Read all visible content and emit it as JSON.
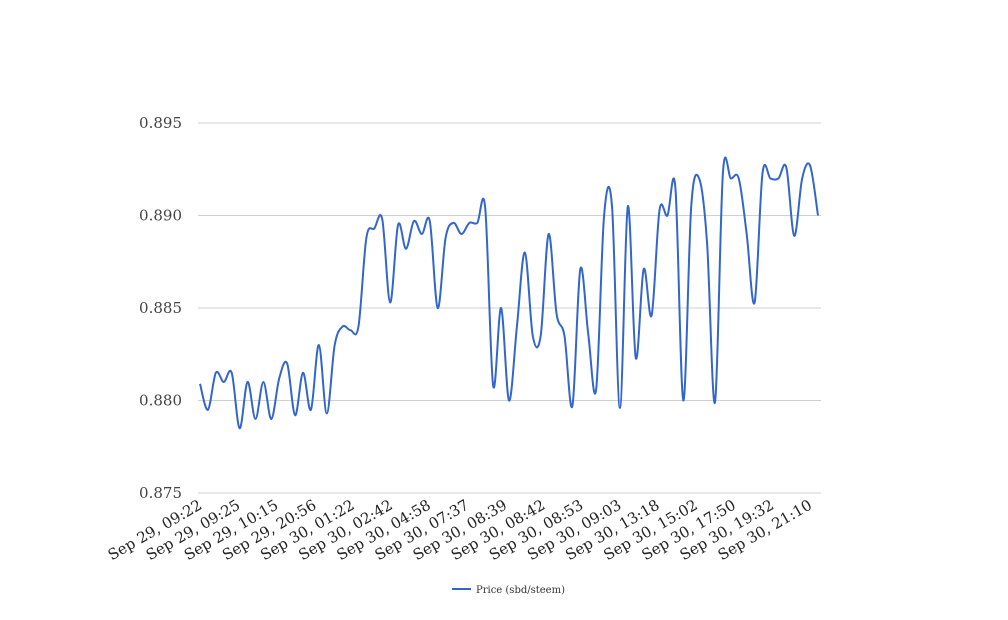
{
  "chart_data": {
    "type": "line",
    "title": "",
    "xlabel": "",
    "ylabel": "",
    "ylim": [
      0.875,
      0.895
    ],
    "y_ticks": [
      "0.875",
      "0.880",
      "0.885",
      "0.890",
      "0.895"
    ],
    "y_tick_values": [
      0.875,
      0.88,
      0.885,
      0.89,
      0.895
    ],
    "x_tick_labels": [
      "Sep 29, 09:22",
      "Sep 29, 09:25",
      "Sep 29, 10:15",
      "Sep 29, 20:56",
      "Sep 30, 01:22",
      "Sep 30, 02:42",
      "Sep 30, 04:58",
      "Sep 30, 07:37",
      "Sep 30, 08:39",
      "Sep 30, 08:42",
      "Sep 30, 08:53",
      "Sep 30, 09:03",
      "Sep 30, 13:18",
      "Sep 30, 15:02",
      "Sep 30, 17:50",
      "Sep 30, 19:32",
      "Sep 30, 21:10"
    ],
    "grid": true,
    "legend_position": "bottom",
    "series": [
      {
        "name": "Price (sbd/steem)",
        "color": "#3366cc",
        "values": [
          0.8809,
          0.8795,
          0.8815,
          0.881,
          0.8815,
          0.8785,
          0.881,
          0.879,
          0.881,
          0.879,
          0.8812,
          0.882,
          0.8792,
          0.8815,
          0.8795,
          0.883,
          0.8793,
          0.883,
          0.884,
          0.8838,
          0.884,
          0.8888,
          0.8893,
          0.8898,
          0.8853,
          0.8895,
          0.8882,
          0.8897,
          0.889,
          0.8897,
          0.885,
          0.8888,
          0.8896,
          0.889,
          0.8896,
          0.8896,
          0.8904,
          0.8808,
          0.885,
          0.88,
          0.884,
          0.888,
          0.8835,
          0.8835,
          0.889,
          0.8847,
          0.8835,
          0.8797,
          0.8871,
          0.8836,
          0.8806,
          0.89,
          0.8905,
          0.8796,
          0.8905,
          0.8823,
          0.8871,
          0.8846,
          0.8903,
          0.89,
          0.8915,
          0.88,
          0.8905,
          0.892,
          0.8885,
          0.8799,
          0.8923,
          0.892,
          0.892,
          0.889,
          0.8853,
          0.8923,
          0.892,
          0.892,
          0.8926,
          0.8889,
          0.892,
          0.8927,
          0.89
        ]
      }
    ]
  }
}
